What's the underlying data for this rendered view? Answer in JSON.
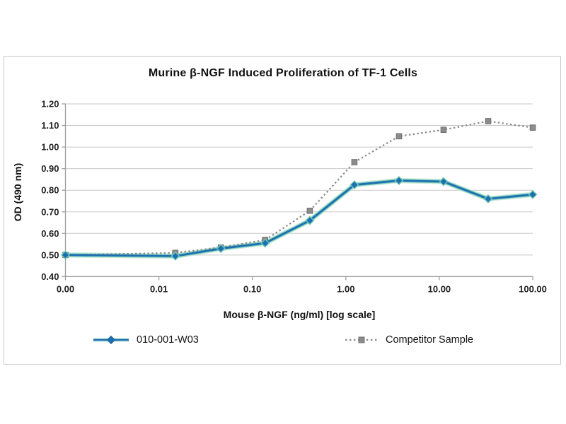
{
  "chart_data": {
    "type": "line",
    "title": "Murine β-NGF Induced Proliferation of TF-1 Cells",
    "xlabel": "Mouse β-NGF (ng/ml) [log scale]",
    "ylabel": "OD (490 nm)",
    "x_scale": "log",
    "grid": "horizontal",
    "legend_position": "bottom",
    "ylim": [
      0.4,
      1.2
    ],
    "x": [
      0,
      0.015,
      0.046,
      0.137,
      0.412,
      1.235,
      3.704,
      11.111,
      33.333,
      100
    ],
    "xticks": {
      "values": [
        0,
        0.01,
        0.1,
        1,
        10,
        100
      ],
      "labels": [
        "0.00",
        "0.01",
        "0.10",
        "1.00",
        "10.00",
        "100.00"
      ]
    },
    "yticks": {
      "values": [
        0.4,
        0.5,
        0.6,
        0.7,
        0.8,
        0.9,
        1.0,
        1.1,
        1.2
      ],
      "labels": [
        "0.40",
        "0.50",
        "0.60",
        "0.70",
        "0.80",
        "0.90",
        "1.00",
        "1.10",
        "1.20"
      ]
    },
    "series": [
      {
        "name": "010-001-W03",
        "marker": "diamond",
        "line": "solid",
        "color": "#1e6fb2",
        "glow_color": "#6cc7b4",
        "values": [
          0.5,
          0.495,
          0.53,
          0.555,
          0.66,
          0.825,
          0.845,
          0.84,
          0.76,
          0.78
        ]
      },
      {
        "name": "Competitor Sample",
        "marker": "square",
        "line": "dotted",
        "color": "#8c8c8c",
        "edge_color": "#6f6f6f",
        "values": [
          0.5,
          0.51,
          0.535,
          0.57,
          0.705,
          0.93,
          1.05,
          1.08,
          1.12,
          1.09
        ]
      }
    ],
    "colors": {
      "gridline": "#c8c8c8",
      "axis": "#9e9e9e",
      "frame_border": "#c9c9c9",
      "text": "#1a1a1a"
    }
  }
}
